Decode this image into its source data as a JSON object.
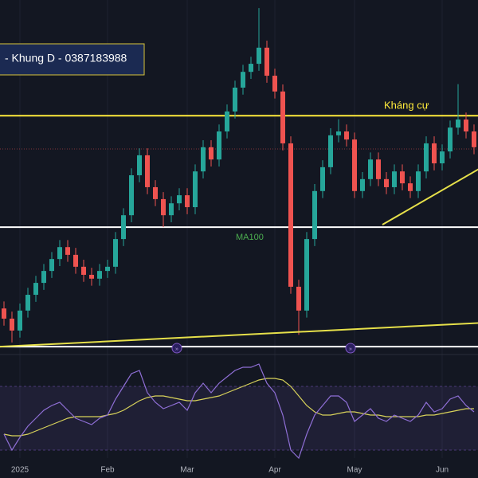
{
  "chart_data": {
    "type": "candlestick",
    "title": "- Khung D - 0387183988",
    "categories": [
      null,
      null,
      "2025",
      null,
      null,
      null,
      null,
      null,
      null,
      null,
      null,
      null,
      null,
      "Feb",
      null,
      null,
      null,
      null,
      null,
      null,
      null,
      null,
      null,
      "Mar",
      null,
      null,
      null,
      null,
      null,
      null,
      null,
      null,
      null,
      null,
      "Apr",
      null,
      null,
      null,
      null,
      null,
      null,
      null,
      null,
      null,
      "May",
      null,
      null,
      null,
      null,
      null,
      null,
      null,
      null,
      null,
      null,
      "Jun",
      null,
      null,
      null,
      null
    ],
    "open": [
      12,
      9.1,
      5.7,
      11.4,
      15.9,
      19.3,
      22.7,
      26.1,
      29.5,
      27.3,
      23.9,
      21.6,
      20.5,
      22.7,
      23.9,
      31.8,
      38.6,
      50,
      55.7,
      46.6,
      43.2,
      38.6,
      42,
      44.3,
      40.9,
      51.1,
      58,
      54.5,
      62.5,
      68.2,
      75,
      79.5,
      81.8,
      86.4,
      78.4,
      73.9,
      59.1,
      18.2,
      11.4,
      31.8,
      45.5,
      52.3,
      61.4,
      62.5,
      60.2,
      45.5,
      48.9,
      54.5,
      48.9,
      46.6,
      51.1,
      47.7,
      45.5,
      51.1,
      59.1,
      53.4,
      56.8,
      63.6,
      65.9,
      62.5
    ],
    "high": [
      14,
      11.1,
      13.4,
      17.9,
      21.3,
      24.7,
      28.1,
      31.5,
      31.5,
      29.3,
      25.9,
      23.6,
      24.7,
      25.9,
      33.8,
      40.6,
      52,
      57.7,
      57.7,
      48.6,
      45.2,
      44,
      46.3,
      46.3,
      53.1,
      60,
      60,
      64.5,
      70.2,
      77,
      81.5,
      83.8,
      97.7,
      88.4,
      80.4,
      75.9,
      61.1,
      20.2,
      33.8,
      47.5,
      54.3,
      63.4,
      66,
      64.5,
      62.2,
      50.9,
      56.5,
      56.5,
      50.9,
      53.1,
      53.1,
      49.7,
      53.1,
      61.1,
      61.1,
      58.8,
      65.6,
      76,
      67.9,
      64.5
    ],
    "low": [
      7.1,
      2.3,
      3.7,
      9.4,
      13.9,
      17.3,
      20.7,
      24.1,
      25.3,
      21.9,
      19.6,
      18.5,
      18.5,
      20.7,
      21.9,
      29.8,
      36.6,
      48,
      44.6,
      41.2,
      35.2,
      36.6,
      40,
      38.9,
      38.9,
      49.1,
      52.5,
      52.5,
      60.5,
      66.2,
      73,
      77.5,
      79.8,
      76.4,
      71.9,
      57.1,
      16.2,
      4.5,
      9.4,
      29.8,
      43.5,
      50.3,
      59.4,
      58.2,
      43.5,
      43.5,
      46.9,
      46.9,
      44.6,
      44.6,
      45.7,
      43.5,
      43.5,
      49.1,
      51.4,
      51.4,
      54.8,
      61.6,
      60.5,
      56
    ],
    "close": [
      9.1,
      5.7,
      11.4,
      15.9,
      19.3,
      22.7,
      26.1,
      29.5,
      27.3,
      23.9,
      21.6,
      20.5,
      22.7,
      23.9,
      31.8,
      38.6,
      50,
      55.7,
      46.6,
      43.2,
      38.6,
      42,
      44.3,
      40.9,
      51.1,
      58,
      54.5,
      62.5,
      68.2,
      75,
      79.5,
      81.8,
      86.4,
      78.4,
      73.9,
      59.1,
      18.2,
      11.4,
      31.8,
      45.5,
      52.3,
      61.4,
      62.5,
      60.2,
      45.5,
      48.9,
      54.5,
      48.9,
      46.6,
      51.1,
      47.7,
      45.5,
      51.1,
      59.1,
      53.4,
      56.8,
      63.6,
      65.9,
      62.5,
      58
    ],
    "up_color": "#26a69a",
    "down_color": "#ef5350",
    "ylim": [
      0,
      100
    ],
    "levels": [
      {
        "value": 67,
        "color": "#ffeb3b",
        "label": "Kháng cự"
      },
      {
        "value": 35.2,
        "color": "#ffffff"
      },
      {
        "value": 1.1,
        "color": "#ffffff"
      }
    ],
    "last_price": 57.5,
    "trendlines": [
      {
        "x": [
          -0.5,
          60
        ],
        "y": [
          1.1,
          7.9
        ],
        "color": "#e6e04a"
      },
      {
        "x": [
          47.5,
          60
        ],
        "y": [
          35.9,
          52.3
        ],
        "color": "#e6e04a"
      }
    ],
    "annotation": "MA100",
    "indicator": {
      "ylim": [
        12.5,
        92.5
      ],
      "band": [
        30,
        70
      ],
      "rsi": {
        "color": "#8f6fd6",
        "values": [
          40,
          30,
          38,
          45,
          50,
          55,
          58,
          60,
          55,
          50,
          48,
          46,
          50,
          52,
          62,
          70,
          78,
          80,
          66,
          60,
          56,
          58,
          60,
          55,
          66,
          72,
          66,
          72,
          76,
          80,
          82,
          82,
          84,
          72,
          66,
          52,
          30,
          25,
          40,
          52,
          58,
          64,
          64,
          60,
          48,
          52,
          56,
          50,
          48,
          52,
          50,
          48,
          52,
          60,
          54,
          56,
          62,
          64,
          58,
          54
        ]
      },
      "rsi_ma": {
        "color": "#d8d25a",
        "values": [
          40,
          39,
          39,
          40,
          42,
          44,
          46,
          48,
          50,
          51,
          51,
          51,
          51,
          52,
          53,
          55,
          58,
          61,
          63,
          64,
          64,
          63,
          62,
          61,
          61,
          62,
          63,
          64,
          66,
          68,
          70,
          72,
          74,
          75,
          75,
          74,
          70,
          64,
          58,
          54,
          52,
          52,
          53,
          54,
          54,
          53,
          52,
          52,
          51,
          51,
          51,
          51,
          51,
          52,
          52,
          53,
          54,
          55,
          56,
          56
        ]
      }
    }
  }
}
